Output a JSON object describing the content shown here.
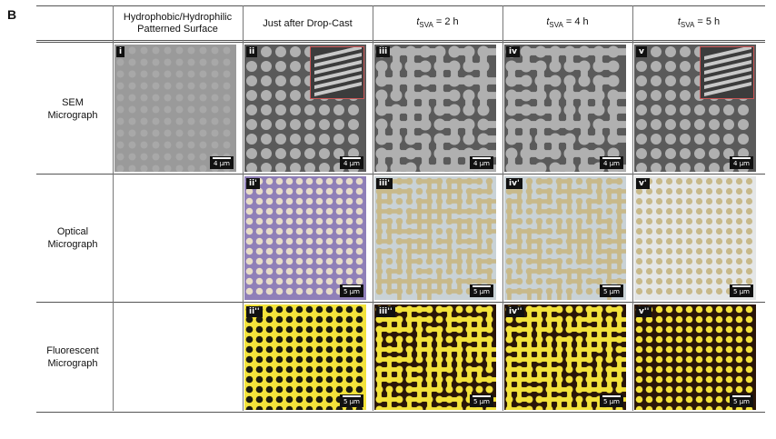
{
  "panel_label": "B",
  "columns": [
    "Hydrophobic/Hydrophilic Patterned Surface",
    "Just after Drop-Cast",
    {
      "t": "t",
      "sub": "SVA",
      "rest": " = 2 h"
    },
    {
      "t": "t",
      "sub": "SVA",
      "rest": " = 4 h"
    },
    {
      "t": "t",
      "sub": "SVA",
      "rest": " = 5 h"
    }
  ],
  "rows": [
    {
      "label": "SEM Micrograph",
      "tags": [
        "i",
        "ii",
        "iii",
        "iv",
        "v"
      ],
      "scale": "4 μm"
    },
    {
      "label": "Optical Micrograph",
      "tags": [
        "ii'",
        "iii'",
        "iv'",
        "v'"
      ],
      "scale": "5 μm"
    },
    {
      "label": "Fluorescent Micrograph",
      "tags": [
        "ii''",
        "iii''",
        "iv''",
        "v''"
      ],
      "scale": "5 μm"
    }
  ],
  "colors": {
    "sem_bg": "#5a5a5a",
    "sem_dot": "#b0b0b0",
    "opt_bg_ii": "#8f7fb8",
    "opt_dot": "#e7dcc8",
    "opt_bg": "#c9d2d6",
    "opt_blob": "#c8b98a",
    "fluo_bg": "#2a1608",
    "fluo_dot": "#f2e23a"
  }
}
